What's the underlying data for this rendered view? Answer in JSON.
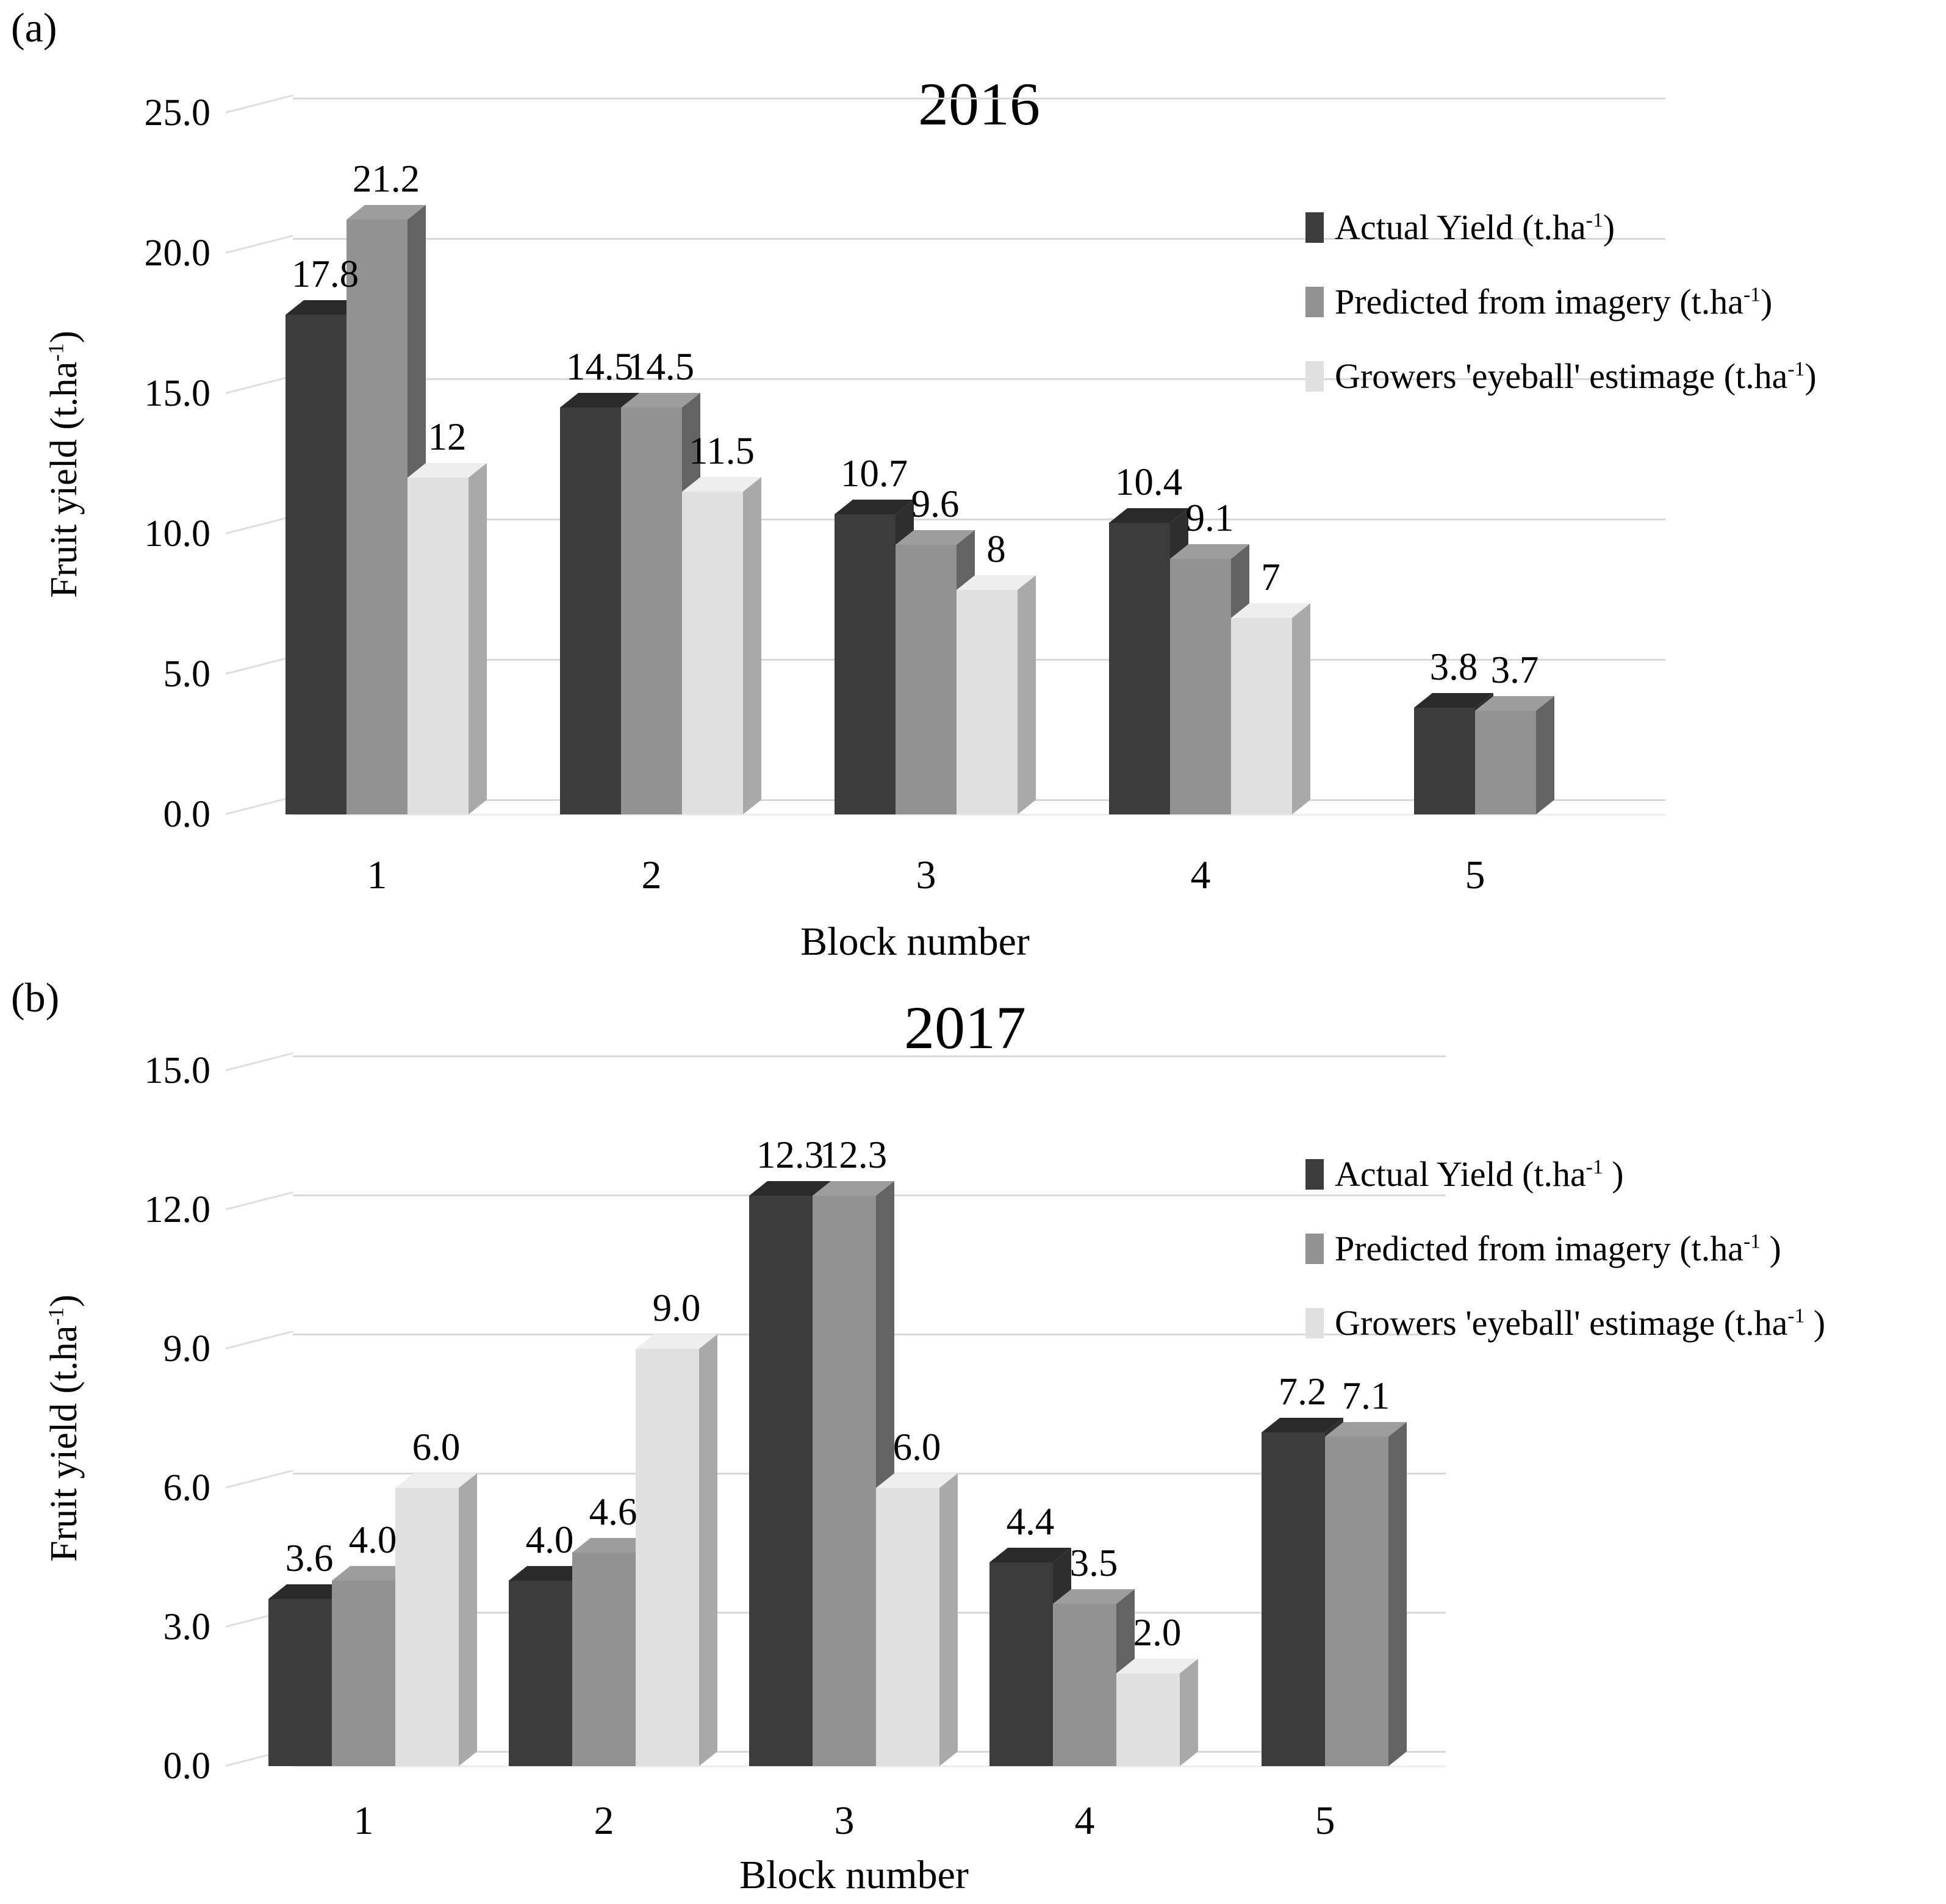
{
  "colors": {
    "background": "#ffffff",
    "text": "#000000",
    "gridline": "#d9d9d9",
    "series": [
      {
        "key": "actual-yield",
        "front": "#3c3c3c",
        "top": "#2a2a2a",
        "side": "#2e2e2e"
      },
      {
        "key": "predicted-from-imagery",
        "front": "#929292",
        "top": "#9d9d9d",
        "side": "#636363"
      },
      {
        "key": "growers-eyeball",
        "front": "#e0e0e0",
        "top": "#eeeeee",
        "side": "#a9a9a9"
      }
    ]
  },
  "chart_data": [
    {
      "type": "bar",
      "panel_label": "(a)",
      "title": "2016",
      "xlabel": "Block number",
      "ylabel": {
        "pre": "Fruit yield (t.ha",
        "sup": "-1",
        "post": ")"
      },
      "categories": [
        "1",
        "2",
        "3",
        "4",
        "5"
      ],
      "y_ticks": [
        "25.0",
        "20.0",
        "15.0",
        "10.0",
        "5.0",
        "0.0"
      ],
      "y_tick_values": [
        25,
        20,
        15,
        10,
        5,
        0
      ],
      "ylim": [
        0,
        25
      ],
      "grid": true,
      "legend_position": "right",
      "series": [
        {
          "name": "Actual Yield (t.ha-1)",
          "values": [
            17.8,
            14.5,
            10.7,
            10.4,
            3.8
          ],
          "labels": [
            "17.8",
            "14.5",
            "10.7",
            "10.4",
            "3.8"
          ]
        },
        {
          "name": "Predicted from imagery (t.ha-1)",
          "values": [
            21.2,
            14.5,
            9.6,
            9.1,
            3.7
          ],
          "labels": [
            "21.2",
            "14.5",
            "9.6",
            "9.1",
            "3.7"
          ]
        },
        {
          "name": "Growers 'eyeball' estimage (t.ha-1)",
          "values": [
            12,
            11.5,
            8,
            7,
            null
          ],
          "labels": [
            "12",
            "11.5",
            "8",
            "7",
            null
          ]
        }
      ],
      "legend": [
        {
          "pre": "Actual Yield (t.ha",
          "sup": "-1",
          "post": ")"
        },
        {
          "pre": "Predicted from imagery (t.ha",
          "sup": "-1",
          "post": ")"
        },
        {
          "pre": "Growers 'eyeball' estimage (t.ha",
          "sup": "-1",
          "post": ")"
        }
      ]
    },
    {
      "type": "bar",
      "panel_label": "(b)",
      "title": "2017",
      "xlabel": "Block number",
      "ylabel": {
        "pre": "Fruit yield (t.ha",
        "sup": "-1",
        "post": ")"
      },
      "categories": [
        "1",
        "2",
        "3",
        "4",
        "5"
      ],
      "y_ticks": [
        "15.0",
        "12.0",
        "9.0",
        "6.0",
        "3.0",
        "0.0"
      ],
      "y_tick_values": [
        15,
        12,
        9,
        6,
        3,
        0
      ],
      "ylim": [
        0,
        15
      ],
      "grid": true,
      "legend_position": "right",
      "series": [
        {
          "name": "Actual Yield (t.ha-1 )",
          "values": [
            3.6,
            4.0,
            12.3,
            4.4,
            7.2
          ],
          "labels": [
            "3.6",
            "4.0",
            "12.3",
            "4.4",
            "7.2"
          ]
        },
        {
          "name": "Predicted from imagery (t.ha-1 )",
          "values": [
            4.0,
            4.6,
            12.3,
            3.5,
            7.1
          ],
          "labels": [
            "4.0",
            "4.6",
            "12.3",
            "3.5",
            "7.1"
          ]
        },
        {
          "name": "Growers 'eyeball' estimage (t.ha-1 )",
          "values": [
            6.0,
            9.0,
            6.0,
            2.0,
            null
          ],
          "labels": [
            "6.0",
            "9.0",
            "6.0",
            "2.0",
            null
          ]
        }
      ],
      "legend": [
        {
          "pre": "Actual Yield (t.ha",
          "sup": "-1",
          "post": " )"
        },
        {
          "pre": "Predicted from imagery (t.ha",
          "sup": "-1",
          "post": " )"
        },
        {
          "pre": "Growers 'eyeball' estimage (t.ha",
          "sup": "-1",
          "post": " )"
        }
      ]
    }
  ]
}
